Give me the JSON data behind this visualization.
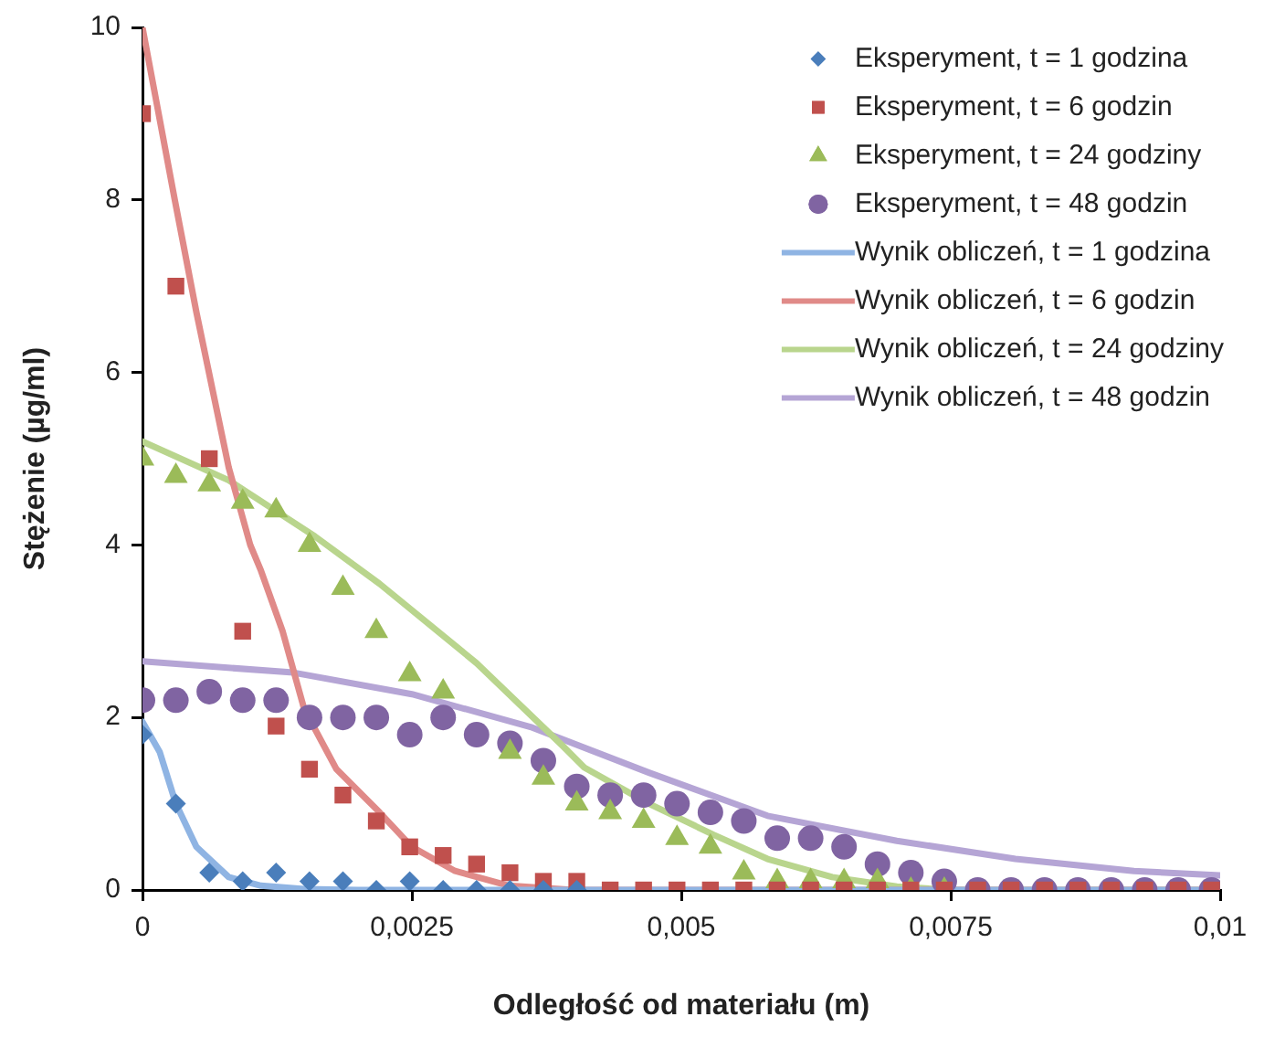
{
  "chart_data": {
    "type": "scatter",
    "xlabel": "Odległość od materiału (m)",
    "ylabel": "Stężenie (µg/ml)",
    "xlim": [
      0,
      0.01
    ],
    "ylim": [
      0,
      10
    ],
    "xticks": [
      0,
      {
        "value": 0.0025,
        "label": "0,0025"
      },
      {
        "value": 0.005,
        "label": "0,005"
      },
      {
        "value": 0.0075,
        "label": "0,0075"
      },
      {
        "value": 0.01,
        "label": "0,01"
      }
    ],
    "yticks": [
      0,
      2,
      4,
      6,
      8,
      10
    ],
    "grid": false,
    "legend": "top right",
    "x": [
      0,
      0.00031,
      0.00062,
      0.00093,
      0.00124,
      0.00155,
      0.00186,
      0.00217,
      0.00248,
      0.00279,
      0.0031,
      0.00341,
      0.00372,
      0.00403,
      0.00434,
      0.00465,
      0.00496,
      0.00527,
      0.00558,
      0.00589,
      0.0062,
      0.00651,
      0.00682,
      0.00713,
      0.00744,
      0.00775,
      0.00806,
      0.00837,
      0.00868,
      0.00899,
      0.0093,
      0.00961,
      0.00992
    ],
    "series": [
      {
        "name": "Eksperyment, t = 1 godzina",
        "type": "scatter",
        "marker": "diamond",
        "color": "#4a7ebb",
        "values": [
          1.8,
          1.0,
          0.2,
          0.1,
          0.2,
          0.1,
          0.1,
          0,
          0.1,
          0,
          0,
          0,
          0,
          0,
          null,
          null,
          null,
          null,
          null,
          null,
          null,
          null,
          null,
          null,
          null,
          null,
          null,
          null,
          null,
          null,
          null,
          null,
          null
        ]
      },
      {
        "name": "Eksperyment, t = 6 godzin",
        "type": "scatter",
        "marker": "square",
        "color": "#c0504d",
        "values": [
          9,
          7,
          5,
          3,
          1.9,
          1.4,
          1.1,
          0.8,
          0.5,
          0.4,
          0.3,
          0.2,
          0.1,
          0.1,
          0,
          0,
          0,
          0,
          0,
          0,
          0,
          0,
          0,
          0,
          0,
          0,
          0,
          0,
          0,
          0,
          0,
          0,
          0
        ]
      },
      {
        "name": "Eksperyment, t = 24 godziny",
        "type": "scatter",
        "marker": "triangle",
        "color": "#9bbb59",
        "values": [
          5.0,
          4.8,
          4.7,
          4.5,
          4.4,
          4.0,
          3.5,
          3.0,
          2.5,
          2.3,
          null,
          1.6,
          1.3,
          1.0,
          0.9,
          0.8,
          0.6,
          0.5,
          0.2,
          0.1,
          0.1,
          0.1,
          0.1,
          0,
          0,
          null,
          null,
          null,
          null,
          null,
          null,
          null,
          null
        ]
      },
      {
        "name": "Eksperyment, t = 48 godzin",
        "type": "scatter",
        "marker": "circle",
        "color": "#8064a2",
        "values": [
          2.2,
          2.2,
          2.3,
          2.2,
          2.2,
          2.0,
          2.0,
          2.0,
          1.8,
          2.0,
          1.8,
          1.7,
          1.5,
          1.2,
          1.1,
          1.1,
          1.0,
          0.9,
          0.8,
          0.6,
          0.6,
          0.5,
          0.3,
          0.2,
          0.1,
          0,
          0,
          0,
          0,
          0,
          0,
          0,
          0
        ]
      },
      {
        "name": "Wynik obliczeń, t = 1 godzina",
        "type": "line",
        "marker": "none",
        "color": "#8fb4e3",
        "x": [
          0,
          0.00016,
          0.00031,
          0.0005,
          0.0008,
          0.0011,
          0.0015,
          0.002,
          0.003,
          0.004,
          0.005,
          0.006,
          0.007,
          0.008,
          0.009,
          0.01
        ],
        "values": [
          1.95,
          1.6,
          1.0,
          0.5,
          0.15,
          0.05,
          0.01,
          0,
          0,
          0,
          0,
          0,
          0,
          0,
          0,
          0
        ]
      },
      {
        "name": "Wynik obliczeń, t = 6 godzin",
        "type": "line",
        "marker": "none",
        "color": "#e08a88",
        "x": [
          0,
          0.0003,
          0.0005,
          0.0008,
          0.001,
          0.0011,
          0.0013,
          0.0015,
          0.0018,
          0.0022,
          0.0025,
          0.0029,
          0.0034,
          0.004,
          0.005,
          0.01
        ],
        "values": [
          10,
          8.0,
          6.7,
          4.9,
          4.0,
          3.7,
          3.0,
          2.1,
          1.4,
          0.9,
          0.5,
          0.22,
          0.05,
          0,
          0,
          0
        ]
      },
      {
        "name": "Wynik obliczeń, t = 24 godziny",
        "type": "line",
        "marker": "none",
        "color": "#b9d58d",
        "x": [
          0,
          0.0008,
          0.0016,
          0.0022,
          0.0031,
          0.0039,
          0.0041,
          0.0047,
          0.0053,
          0.0058,
          0.0064,
          0.007,
          0.0075,
          0.01
        ],
        "values": [
          5.2,
          4.75,
          4.1,
          3.55,
          2.63,
          1.67,
          1.42,
          1.0,
          0.64,
          0.36,
          0.15,
          0.04,
          0,
          0
        ]
      },
      {
        "name": "Wynik obliczeń, t = 48 godzin",
        "type": "line",
        "marker": "none",
        "color": "#b5a5d5",
        "x": [
          0,
          0.0014,
          0.0025,
          0.0036,
          0.0047,
          0.0058,
          0.007,
          0.0081,
          0.0092,
          0.01
        ],
        "values": [
          2.65,
          2.52,
          2.27,
          1.89,
          1.36,
          0.86,
          0.57,
          0.36,
          0.22,
          0.17
        ]
      }
    ]
  }
}
